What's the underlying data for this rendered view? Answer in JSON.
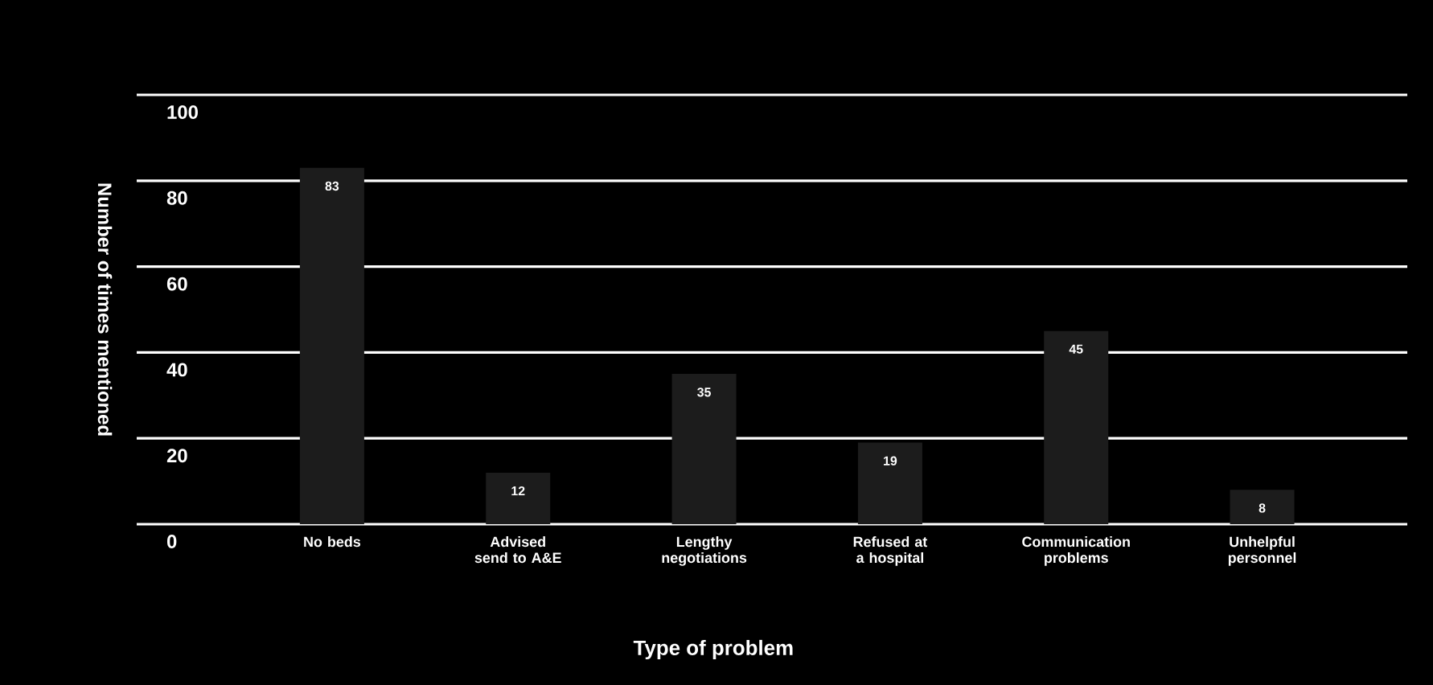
{
  "chart_data": {
    "type": "bar",
    "xlabel": "Type of problem",
    "ylabel": "Number of times mentioned",
    "categories": [
      "No beds",
      "Advised send to A&E",
      "Lengthy negotiations",
      "Refused at a hospital",
      "Communication problems",
      "Unhelpful personnel"
    ],
    "values": [
      83,
      12,
      35,
      19,
      45,
      8
    ],
    "color": "#1c1c1c",
    "ylim": [
      0,
      100
    ],
    "yticks": [
      0,
      20,
      40,
      60,
      80,
      100
    ],
    "grid": "y",
    "data_labels": true
  }
}
